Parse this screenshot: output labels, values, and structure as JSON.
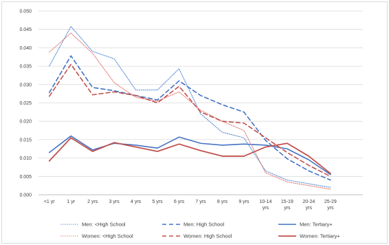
{
  "chart_data": {
    "type": "line",
    "title": "",
    "xlabel": "",
    "ylabel": "",
    "ylim": [
      0.0,
      0.05
    ],
    "yticks": [
      "0.000",
      "0.005",
      "0.010",
      "0.015",
      "0.020",
      "0.025",
      "0.030",
      "0.035",
      "0.040",
      "0.045",
      "0.050"
    ],
    "grid": "horizontal",
    "legend_position": "bottom",
    "categories": [
      [
        "<1 yr"
      ],
      [
        "1 yr"
      ],
      [
        "2 yrs"
      ],
      [
        "3 yrs"
      ],
      [
        "4 yrs"
      ],
      [
        "5 yrs"
      ],
      [
        "6 yrs"
      ],
      [
        "7 yrs"
      ],
      [
        "8 yrs"
      ],
      [
        "9 yrs"
      ],
      [
        "10-14",
        "yrs"
      ],
      [
        "15-19",
        "yrs"
      ],
      [
        "20-24",
        "yrs"
      ],
      [
        "25-29",
        "yrs"
      ]
    ],
    "series": [
      {
        "name": "Men: <High School",
        "color": "#5b8fd6",
        "dash": "dotted",
        "width": 1.1,
        "values": [
          0.035,
          0.0458,
          0.039,
          0.037,
          0.0285,
          0.0285,
          0.0343,
          0.022,
          0.017,
          0.0155,
          0.0065,
          0.004,
          0.003,
          0.002
        ]
      },
      {
        "name": "Men: High School",
        "color": "#4472c4",
        "dash": "dashed",
        "width": 1.6,
        "values": [
          0.0278,
          0.0378,
          0.0292,
          0.0283,
          0.027,
          0.0258,
          0.031,
          0.027,
          0.0245,
          0.0225,
          0.0148,
          0.0098,
          0.0065,
          0.004
        ]
      },
      {
        "name": "Men: Tertiary+",
        "color": "#4472c4",
        "dash": "solid",
        "width": 1.6,
        "values": [
          0.0115,
          0.016,
          0.0122,
          0.014,
          0.0135,
          0.0127,
          0.0157,
          0.014,
          0.0135,
          0.0138,
          0.0135,
          0.0125,
          0.0095,
          0.0055
        ]
      },
      {
        "name": "Women: <High School",
        "color": "#e37d73",
        "dash": "dotted",
        "width": 1.1,
        "values": [
          0.0388,
          0.044,
          0.0385,
          0.0305,
          0.0265,
          0.0255,
          0.028,
          0.023,
          0.02,
          0.0175,
          0.006,
          0.0035,
          0.0025,
          0.0015
        ]
      },
      {
        "name": "Women: High School",
        "color": "#c0504d",
        "dash": "dashed",
        "width": 1.6,
        "values": [
          0.0268,
          0.0355,
          0.0272,
          0.028,
          0.027,
          0.025,
          0.0295,
          0.0225,
          0.02,
          0.0195,
          0.0155,
          0.0115,
          0.008,
          0.005
        ]
      },
      {
        "name": "Women: Tertiary+",
        "color": "#c0504d",
        "dash": "solid",
        "width": 1.8,
        "values": [
          0.0092,
          0.0155,
          0.0118,
          0.0142,
          0.013,
          0.0118,
          0.0138,
          0.012,
          0.0105,
          0.0105,
          0.013,
          0.014,
          0.0105,
          0.0058
        ]
      }
    ],
    "legend_rows": [
      [
        "Men: <High School",
        "Men: High School",
        "Men: Tertiary+"
      ],
      [
        "Women: <High School",
        "Women: High School",
        "Women: Tertiary+"
      ]
    ]
  }
}
